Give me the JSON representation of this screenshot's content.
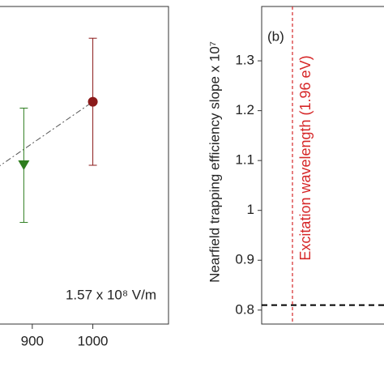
{
  "chart_data": [
    {
      "type": "scatter",
      "annotation": "1.57 x 10⁸ V/m",
      "xlim": [
        840,
        1125
      ],
      "xticks": [
        900,
        1000
      ],
      "ylim": [
        0,
        100
      ],
      "series": [
        {
          "x": [
            886
          ],
          "values": [
            50
          ],
          "errors": [
            18
          ],
          "color": "#2e7d1e",
          "marker": "triangle-down"
        },
        {
          "x": [
            1000
          ],
          "values": [
            70
          ],
          "errors": [
            20
          ],
          "color": "#8b1a1a",
          "marker": "circle"
        }
      ],
      "trend": {
        "x": [
          840,
          1000
        ],
        "values": [
          49,
          70
        ],
        "color": "#555"
      }
    },
    {
      "type": "line",
      "panel_label": "(b)",
      "y_label": "Nearfield trapping efficiency slope x 10⁷",
      "ylim": [
        0.772,
        1.409
      ],
      "yticks": [
        0.8,
        0.9,
        1.0,
        1.1,
        1.2,
        1.3
      ],
      "hlines": [
        {
          "value": 0.81,
          "color": "#000"
        }
      ],
      "vline_label": "Excitation wavelength (1.96 eV)",
      "vline_color": "#d62728"
    }
  ]
}
